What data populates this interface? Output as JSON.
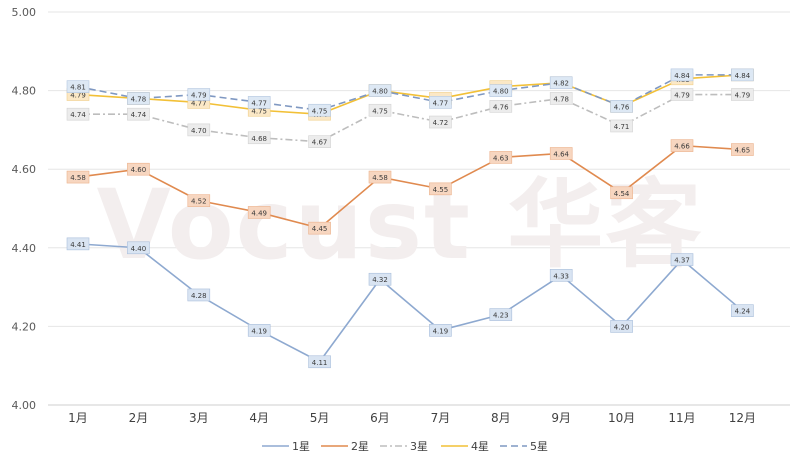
{
  "chart_data": {
    "type": "line",
    "title": "",
    "xlabel": "",
    "ylabel": "",
    "categories": [
      "1月",
      "2月",
      "3月",
      "4月",
      "5月",
      "6月",
      "7月",
      "8月",
      "9月",
      "10月",
      "11月",
      "12月"
    ],
    "ylim": [
      4.0,
      5.0
    ],
    "yticks": [
      "4.00",
      "4.20",
      "4.40",
      "4.60",
      "4.80",
      "5.00"
    ],
    "grid": true,
    "legend_position": "bottom",
    "watermark": "Vocust 华客",
    "series": [
      {
        "name": "1星",
        "color": "#8ea9d0",
        "dash": "solid",
        "label_bg": "#d9e4f2",
        "label_stroke": "#a9bedb",
        "values": [
          4.41,
          4.4,
          4.28,
          4.19,
          4.11,
          4.32,
          4.19,
          4.23,
          4.33,
          4.2,
          4.37,
          4.24
        ],
        "labels": [
          "4.41",
          "4.40",
          "4.28",
          "4.19",
          "4.11",
          "4.32",
          "4.19",
          "4.23",
          "4.33",
          "4.20",
          "4.37",
          "4.24"
        ]
      },
      {
        "name": "2星",
        "color": "#e08a4f",
        "dash": "solid",
        "label_bg": "#f7d6c0",
        "label_stroke": "#ecb28d",
        "values": [
          4.58,
          4.6,
          4.52,
          4.49,
          4.45,
          4.58,
          4.55,
          4.63,
          4.64,
          4.54,
          4.66,
          4.65
        ],
        "labels": [
          "4.58",
          "4.60",
          "4.52",
          "4.49",
          "4.45",
          "4.58",
          "4.55",
          "4.63",
          "4.64",
          "4.54",
          "4.66",
          "4.65"
        ]
      },
      {
        "name": "3星",
        "color": "#bdbdbd",
        "dash": "dashdot",
        "label_bg": "#ececec",
        "label_stroke": "#d2d2d2",
        "values": [
          4.74,
          4.74,
          4.7,
          4.68,
          4.67,
          4.75,
          4.72,
          4.76,
          4.78,
          4.71,
          4.79,
          4.79
        ],
        "labels": [
          "4.74",
          "4.74",
          "4.70",
          "4.68",
          "4.67",
          "4.75",
          "4.72",
          "4.76",
          "4.78",
          "4.71",
          "4.79",
          "4.79"
        ]
      },
      {
        "name": "4星",
        "color": "#f2c037",
        "dash": "solid",
        "label_bg": "#fbe8c6",
        "label_stroke": "#f0cf8a",
        "values": [
          4.79,
          4.78,
          4.77,
          4.75,
          4.74,
          4.8,
          4.78,
          4.81,
          4.82,
          4.76,
          4.83,
          4.84
        ],
        "labels": [
          "4.79",
          "4.78",
          "4.77",
          "4.75",
          "4.74",
          "4.80",
          "4.78",
          "4.81",
          "4.82",
          "4.76",
          "4.83",
          "4.84"
        ]
      },
      {
        "name": "5星",
        "color": "#7f98c2",
        "dash": "dash",
        "label_bg": "#dde8f4",
        "label_stroke": "#b3c6df",
        "values": [
          4.81,
          4.78,
          4.79,
          4.77,
          4.75,
          4.8,
          4.77,
          4.8,
          4.82,
          4.76,
          4.84,
          4.84
        ],
        "labels": [
          "4.81",
          "4.78",
          "4.79",
          "4.77",
          "4.75",
          "4.80",
          "4.77",
          "4.80",
          "4.82",
          "4.76",
          "4.84",
          "4.84"
        ]
      }
    ]
  }
}
